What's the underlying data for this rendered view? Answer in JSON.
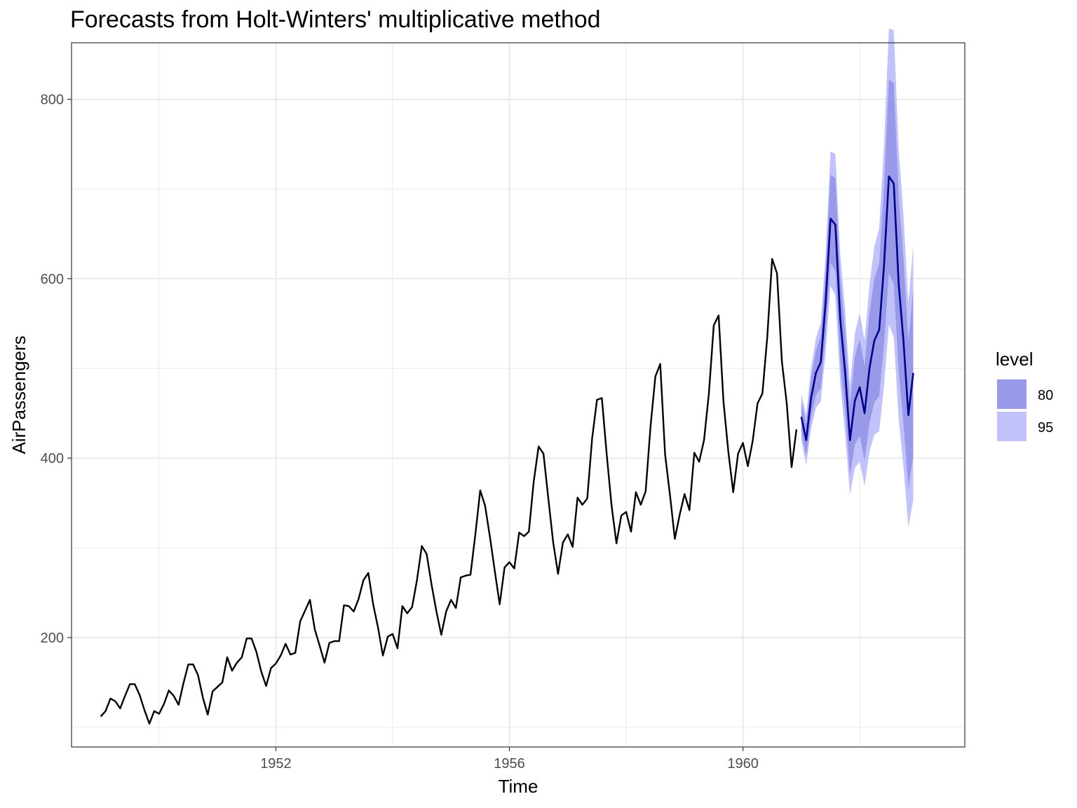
{
  "chart_data": {
    "type": "line",
    "title": "Forecasts from Holt-Winters' multiplicative method",
    "xlabel": "Time",
    "ylabel": "AirPassengers",
    "xlim": [
      1948.5,
      1963.8
    ],
    "ylim": [
      78,
      863
    ],
    "x_ticks": [
      1952,
      1956,
      1960
    ],
    "x_tick_labels": [
      "1952",
      "1956",
      "1960"
    ],
    "x_minor": [
      1950,
      1954,
      1958,
      1962
    ],
    "y_ticks": [
      200,
      400,
      600,
      800
    ],
    "y_tick_labels": [
      "200",
      "400",
      "600",
      "800"
    ],
    "y_minor": [
      100,
      300,
      500,
      700
    ],
    "grid": true,
    "legend_placement": "right",
    "observed": {
      "start": 1949,
      "frequency": 12,
      "color": "#000000",
      "values": [
        112,
        118,
        132,
        129,
        121,
        135,
        148,
        148,
        136,
        119,
        104,
        118,
        115,
        126,
        141,
        135,
        125,
        149,
        170,
        170,
        158,
        133,
        114,
        140,
        145,
        150,
        178,
        163,
        172,
        178,
        199,
        199,
        184,
        162,
        146,
        166,
        171,
        180,
        193,
        181,
        183,
        218,
        230,
        242,
        209,
        191,
        172,
        194,
        196,
        196,
        236,
        235,
        229,
        243,
        264,
        272,
        237,
        211,
        180,
        201,
        204,
        188,
        235,
        227,
        234,
        264,
        302,
        293,
        259,
        229,
        203,
        229,
        242,
        233,
        267,
        269,
        270,
        315,
        364,
        347,
        312,
        274,
        237,
        278,
        284,
        277,
        317,
        313,
        318,
        374,
        413,
        405,
        355,
        306,
        271,
        306,
        315,
        301,
        356,
        348,
        355,
        422,
        465,
        467,
        404,
        347,
        305,
        336,
        340,
        318,
        362,
        348,
        363,
        435,
        491,
        505,
        404,
        359,
        310,
        337,
        360,
        342,
        406,
        396,
        420,
        472,
        548,
        559,
        463,
        407,
        362,
        405,
        417,
        391,
        419,
        461,
        472,
        535,
        622,
        606,
        508,
        461,
        390,
        432
      ]
    },
    "forecast": {
      "start": 1961,
      "frequency": 12,
      "color": "#00008b",
      "mean": [
        446,
        420,
        467,
        495,
        507,
        574,
        667,
        660,
        555,
        496,
        420,
        464,
        479,
        450,
        500,
        531,
        543,
        615,
        714,
        706,
        595,
        530,
        448,
        495
      ],
      "lo80": [
        429,
        402,
        445,
        470,
        478,
        538,
        618,
        608,
        508,
        451,
        380,
        415,
        425,
        397,
        439,
        462,
        469,
        527,
        606,
        594,
        496,
        438,
        366,
        402
      ],
      "hi80": [
        463,
        438,
        489,
        520,
        536,
        610,
        716,
        712,
        602,
        541,
        460,
        513,
        533,
        503,
        561,
        600,
        617,
        703,
        822,
        818,
        694,
        622,
        530,
        588
      ],
      "lo95": [
        420,
        392,
        433,
        456,
        463,
        519,
        592,
        581,
        483,
        427,
        359,
        389,
        396,
        369,
        407,
        426,
        430,
        481,
        549,
        535,
        444,
        390,
        323,
        353
      ],
      "hi95": [
        472,
        448,
        501,
        534,
        551,
        629,
        742,
        739,
        627,
        565,
        481,
        539,
        562,
        531,
        593,
        636,
        656,
        749,
        879,
        877,
        746,
        670,
        573,
        637
      ]
    },
    "legend": {
      "title": "level",
      "entries": [
        {
          "label": "80",
          "color": "#9999ea"
        },
        {
          "label": "95",
          "color": "#c2c2fb"
        }
      ]
    },
    "band_colors": {
      "band80": "#9999ea",
      "band95": "#c2c2fb"
    }
  }
}
